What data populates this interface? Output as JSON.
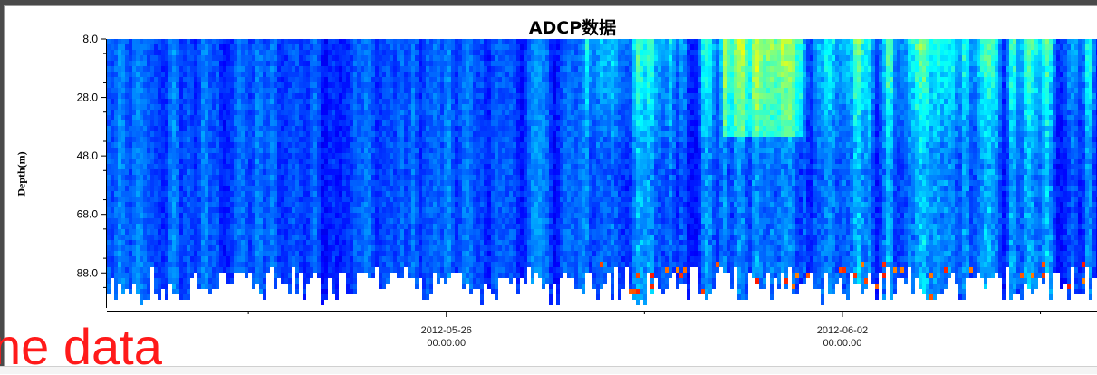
{
  "chart_data": {
    "type": "heatmap",
    "title": "ADCP数据",
    "ylabel": "Depth(m)",
    "xlabel": "",
    "y_ticks": [
      "8.0",
      "28.0",
      "48.0",
      "68.0",
      "88.0"
    ],
    "y_tick_values": [
      8,
      28,
      48,
      68,
      88
    ],
    "ylim": [
      8,
      100
    ],
    "y_inverted": true,
    "x_ticks": [
      {
        "date": "2012-05-26",
        "time": "00:00:00"
      },
      {
        "date": "2012-06-02",
        "time": "00:00:00"
      }
    ],
    "xlim": [
      "2012-05-20 00:00",
      "2012-06-06 12:00"
    ],
    "colormap": [
      "#00007f",
      "#0000ff",
      "#007fff",
      "#00ffff",
      "#7fff7f",
      "#ffff00",
      "#ff7f00",
      "#ff0000"
    ],
    "missing_color": "#ffffff",
    "pattern": "Mostly dark-blue (low) values before ~2012-05-29; brighter cyan/green/yellow bands near the surface (8–40 m) from ~2012-05-29 onward, with scattered red/yellow points near the bottom (90–100 m) after 2012-06-01."
  },
  "overlay_text": "ne data"
}
